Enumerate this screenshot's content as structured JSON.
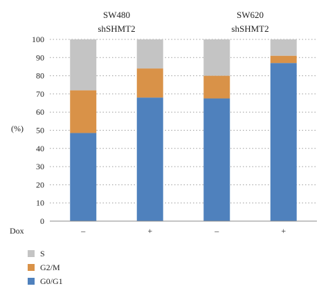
{
  "chart_data": {
    "type": "bar",
    "stacked": true,
    "groups": [
      {
        "line1": "SW480",
        "line2": "shSHMT2"
      },
      {
        "line1": "SW620",
        "line2": "shSHMT2"
      }
    ],
    "categories": [
      "–",
      "+",
      "–",
      "+"
    ],
    "xlabel": "Dox",
    "ylabel": "(%)",
    "ylim": [
      0,
      100
    ],
    "yticks": [
      0,
      10,
      20,
      30,
      40,
      50,
      60,
      70,
      80,
      90,
      100
    ],
    "grid": "horizontal dotted",
    "legend_position": "bottom-left",
    "series": [
      {
        "name": "G0/G1",
        "color": "#4f81bd",
        "values": [
          48.5,
          68,
          67.5,
          87
        ]
      },
      {
        "name": "G2/M",
        "color": "#d99248",
        "values": [
          23.5,
          16,
          12.5,
          4
        ]
      },
      {
        "name": "S",
        "color": "#c4c4c4",
        "values": [
          28,
          16,
          20,
          9
        ]
      }
    ],
    "legend_order": [
      "S",
      "G2/M",
      "G0/G1"
    ]
  }
}
